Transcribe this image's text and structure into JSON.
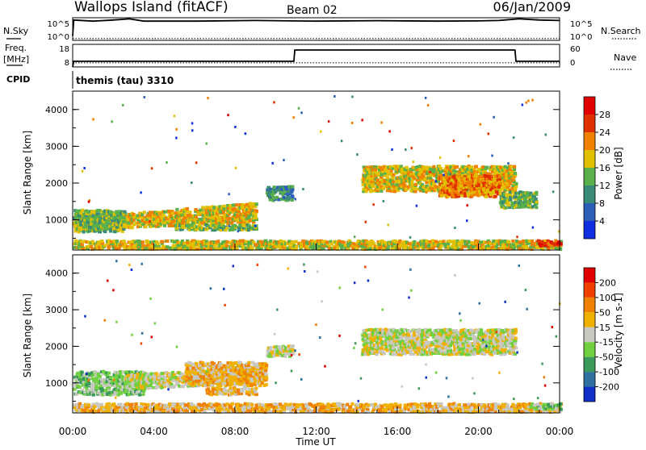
{
  "header": {
    "site": "Wallops Island (fitACF)",
    "beam": "Beam 02",
    "date": "06/Jan/2009"
  },
  "status": {
    "nsky_label": "N.Sky",
    "nsearch_label": "N.Search",
    "nsky_ticks": [
      "10^5",
      "10^0"
    ],
    "nsearch_ticks": [
      "10^5",
      "10^0"
    ],
    "freq_label": "Freq.",
    "freq_unit": "[MHz]",
    "freq_ticks": [
      "18",
      "8"
    ],
    "nave_label": "Nave",
    "nave_ticks": [
      "60",
      "0"
    ],
    "cpid_label": "CPID",
    "cpid_value": "themis (tau) 3310"
  },
  "axes": {
    "ylabel": "Slant Range [km]",
    "xlabel": "Time UT",
    "y_ticks": [
      "1000",
      "2000",
      "3000",
      "4000"
    ],
    "x_ticks": [
      "00:00",
      "04:00",
      "08:00",
      "12:00",
      "16:00",
      "20:00",
      "00:00"
    ]
  },
  "power_scale": {
    "label": "Power [dB]",
    "ticks": [
      "4",
      "8",
      "12",
      "16",
      "20",
      "24",
      "28"
    ],
    "colors": [
      "#1030e0",
      "#2e5fb8",
      "#3a8a78",
      "#5ab04a",
      "#e0c000",
      "#f08000",
      "#e03000",
      "#e00000"
    ]
  },
  "velocity_scale": {
    "label": "Velocity [m s-1]",
    "ticks": [
      "200",
      "100",
      "50",
      "15",
      "-15",
      "-50",
      "-100",
      "-200"
    ],
    "colors": [
      "#1030c8",
      "#2e70a0",
      "#3a9a5a",
      "#70d040",
      "#c8c8c0",
      "#f0b000",
      "#f08000",
      "#f04000",
      "#e00000"
    ]
  },
  "chart_data": [
    {
      "type": "line",
      "panel": "N.Sky / N.Search",
      "x_range_hours": [
        0,
        24
      ],
      "series": [
        {
          "name": "N.Sky",
          "x": [
            0,
            0.05,
            1,
            2,
            2.8,
            3.5,
            6,
            9,
            12,
            15,
            18,
            20,
            21,
            22,
            23,
            24
          ],
          "y": [
            0.2,
            0.9,
            0.85,
            0.9,
            0.95,
            0.85,
            0.85,
            0.88,
            0.85,
            0.87,
            0.85,
            0.86,
            0.88,
            0.95,
            0.9,
            0.88
          ]
        },
        {
          "name": "N.Search",
          "x": [
            0,
            24
          ],
          "y": [
            0.08,
            0.08
          ]
        }
      ]
    },
    {
      "type": "line",
      "panel": "Freq. / Nave",
      "x_range_hours": [
        0,
        24
      ],
      "series": [
        {
          "name": "Freq. [MHz]",
          "x": [
            0,
            0.05,
            10.9,
            10.95,
            21.8,
            21.85,
            24
          ],
          "y": [
            8,
            10.5,
            10.5,
            15.5,
            15.5,
            10.5,
            10.5
          ]
        },
        {
          "name": "Nave",
          "x": [
            0,
            24
          ],
          "y": [
            11,
            11
          ]
        }
      ]
    },
    {
      "type": "heatmap",
      "panel": "Power",
      "x_range_hours": [
        0,
        24
      ],
      "y_range_km": [
        180,
        4500
      ],
      "bands": [
        {
          "t0": 0.0,
          "t1": 9.0,
          "r0": 700,
          "r1": 1050,
          "r0_end": 900,
          "r1_end": 1450,
          "level": 4
        },
        {
          "t0": 0.0,
          "t1": 2.5,
          "r0": 650,
          "r1": 1250,
          "level": 3
        },
        {
          "t0": 5.0,
          "t1": 9.0,
          "r0": 700,
          "r1": 850,
          "level": 3
        },
        {
          "t0": 9.5,
          "t1": 10.8,
          "r0": 1500,
          "r1": 1900,
          "level": 2
        },
        {
          "t0": 14.2,
          "t1": 21.8,
          "r0": 1750,
          "r1": 2450,
          "level": 4
        },
        {
          "t0": 18.0,
          "t1": 21.0,
          "r0": 1600,
          "r1": 2200,
          "level": 5
        },
        {
          "t0": 21.0,
          "t1": 22.8,
          "r0": 1300,
          "r1": 1750,
          "level": 3
        },
        {
          "t0": 0.0,
          "t1": 24.0,
          "r0": 180,
          "r1": 420,
          "level": 4
        },
        {
          "t0": 22.8,
          "t1": 24.0,
          "r0": 260,
          "r1": 420,
          "level": 6
        }
      ]
    },
    {
      "type": "heatmap",
      "panel": "Velocity",
      "x_range_hours": [
        0,
        24
      ],
      "y_range_km": [
        180,
        4500
      ],
      "bands": [
        {
          "t0": 0.0,
          "t1": 3.5,
          "r0": 650,
          "r1": 1300,
          "level": 3
        },
        {
          "t0": 2.5,
          "t1": 9.0,
          "r0": 800,
          "r1": 1200,
          "r0_end": 950,
          "r1_end": 1450,
          "level": 4
        },
        {
          "t0": 5.5,
          "t1": 9.5,
          "r0": 900,
          "r1": 1550,
          "level": 5
        },
        {
          "t0": 6.5,
          "t1": 9.0,
          "r0": 650,
          "r1": 850,
          "level": 5
        },
        {
          "t0": 9.5,
          "t1": 10.8,
          "r0": 1700,
          "r1": 2000,
          "level": 4
        },
        {
          "t0": 14.2,
          "t1": 21.8,
          "r0": 1750,
          "r1": 2450,
          "level": 4
        },
        {
          "t0": 0.0,
          "t1": 24.0,
          "r0": 180,
          "r1": 420,
          "level": 5
        },
        {
          "t0": 22.5,
          "t1": 24.0,
          "r0": 250,
          "r1": 420,
          "level": 3
        }
      ]
    }
  ]
}
